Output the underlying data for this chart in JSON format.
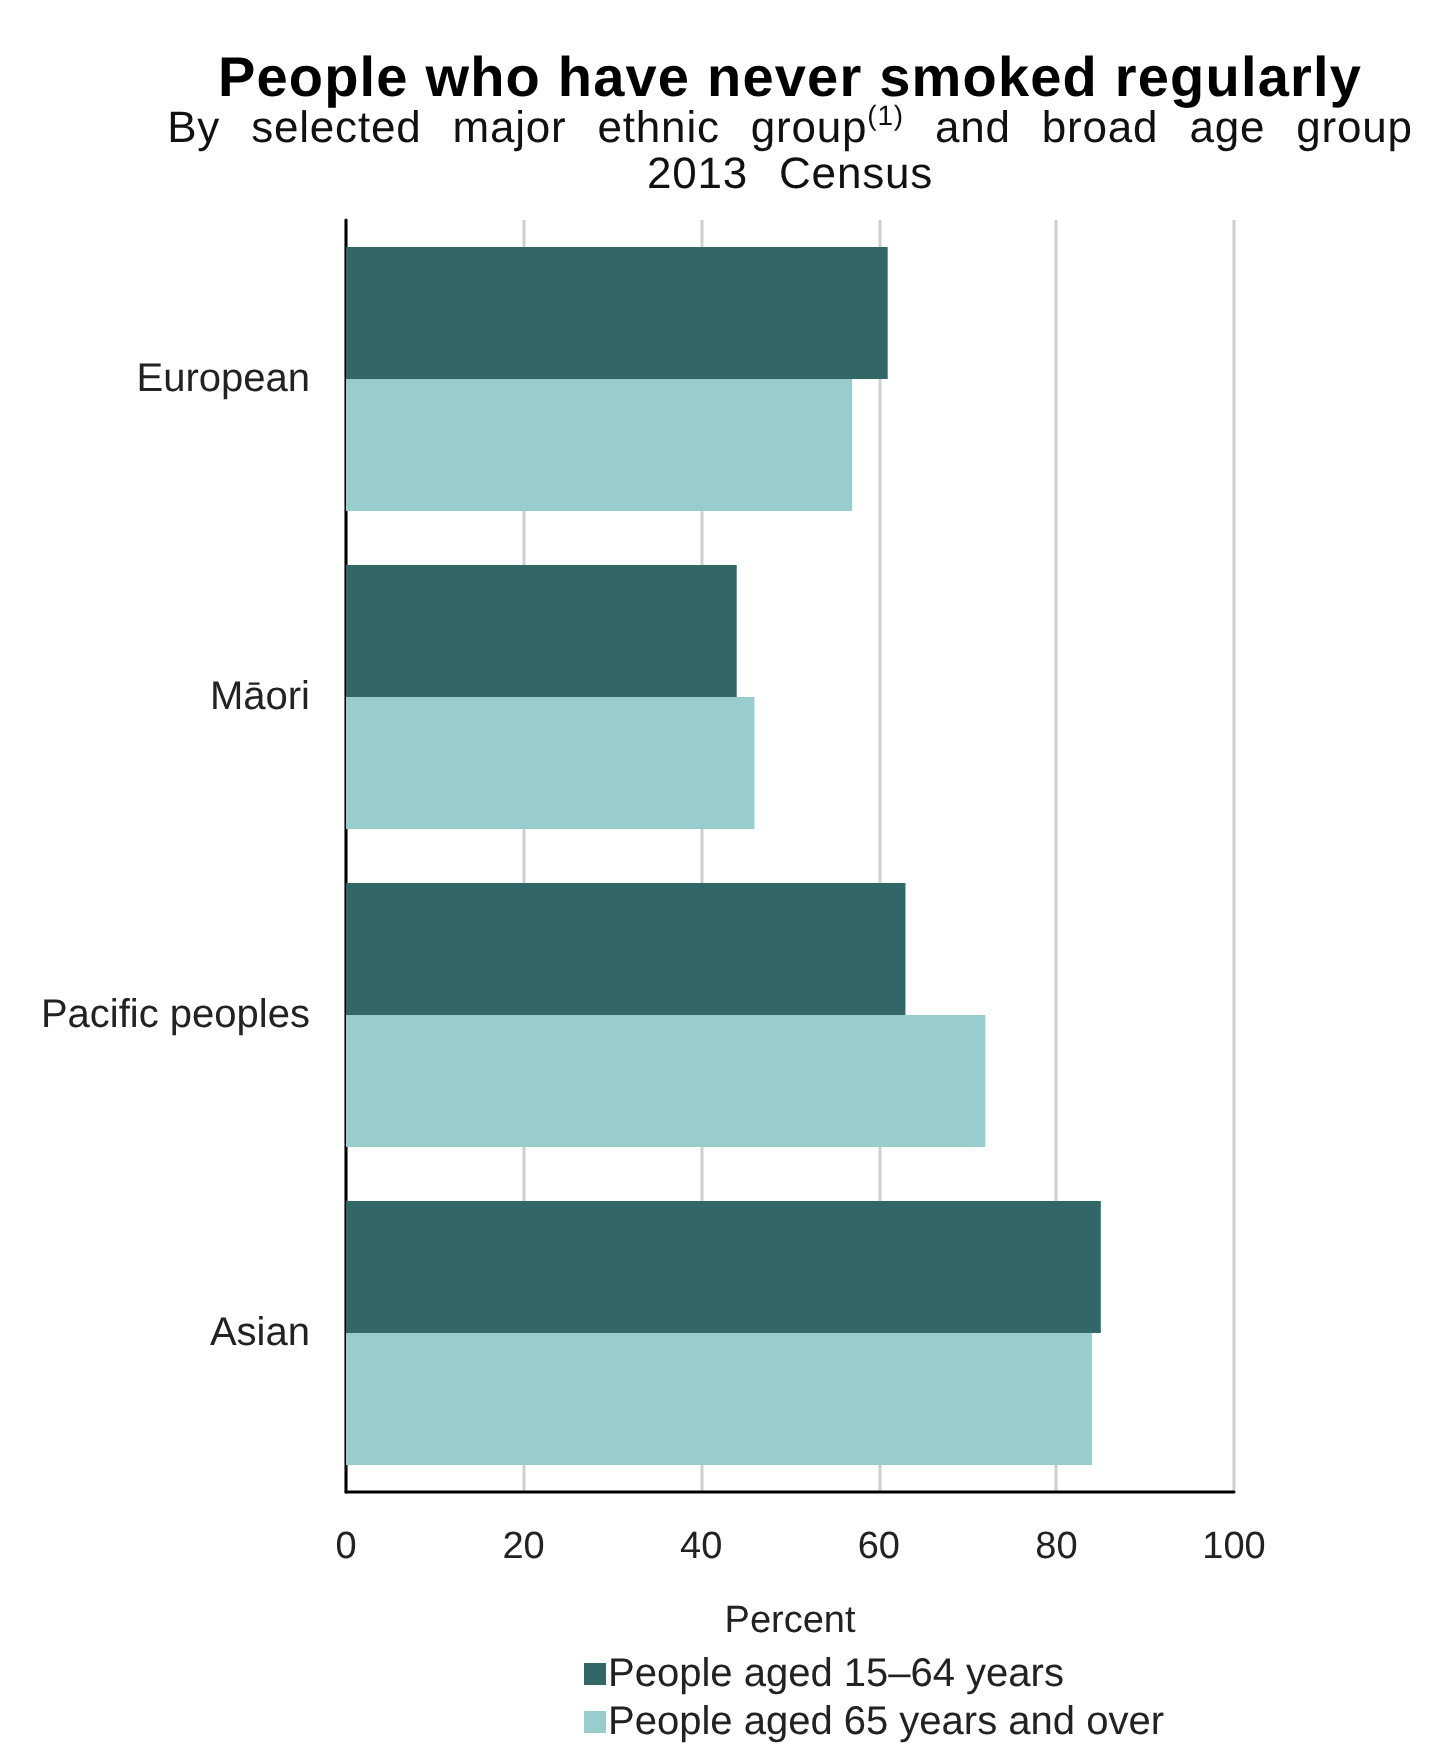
{
  "chart_data": {
    "type": "bar",
    "orientation": "horizontal",
    "title": "People who have never smoked regularly",
    "subtitle": "By selected major ethnic group$^{(1)}$ and broad age group\n2013 Census",
    "xlabel": "Percent",
    "categories": [
      "European",
      "Māori",
      "Pacific peoples",
      "Asian"
    ],
    "series": [
      {
        "name": "People aged 15–64 years",
        "color": "#336666",
        "values": [
          61,
          44,
          63,
          85
        ]
      },
      {
        "name": "People aged 65 years and over",
        "color": "#99cccc",
        "values": [
          57,
          46,
          72,
          84
        ]
      }
    ],
    "xlim": [
      0,
      100
    ],
    "xticks": [
      0,
      20,
      40,
      60,
      80,
      100
    ],
    "grid": "x",
    "legend": "bottom"
  }
}
